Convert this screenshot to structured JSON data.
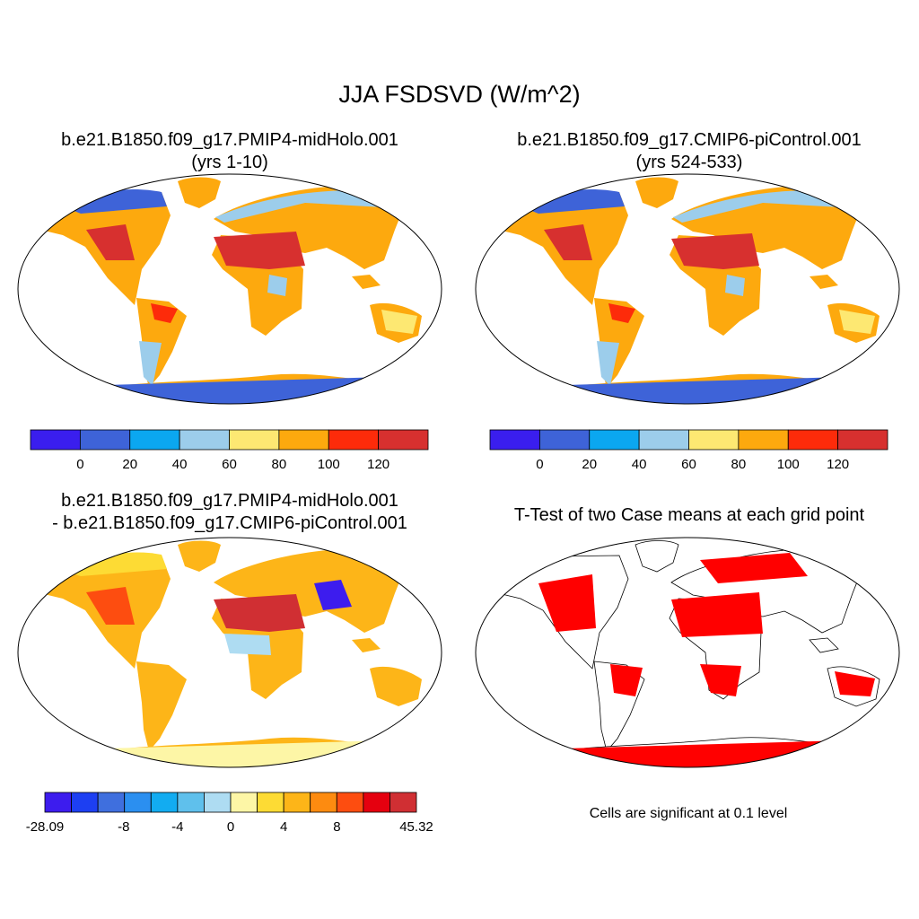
{
  "title": "JJA FSDSVD (W/m^2)",
  "colors": {
    "ocean": "#ffffff",
    "land_blank": "#ffffff",
    "outline": "#000000",
    "significance": "#ff0000",
    "antarctica_base": "#3f63d8",
    "antarctica_diff": "#fff29a"
  },
  "chart_data": [
    {
      "type": "heatmap",
      "id": "panel-1",
      "title_line1": "b.e21.B1850.f09_g17.PMIP4-midHolo.001",
      "title_line2": "(yrs 1-10)",
      "colorbar": {
        "colors": [
          "#3a1eee",
          "#3e63d8",
          "#0ba7f0",
          "#9ccdeb",
          "#fde872",
          "#fda90e",
          "#fd2b0a",
          "#d7302f"
        ],
        "labels": [
          "0",
          "20",
          "40",
          "60",
          "80",
          "100",
          "120"
        ]
      }
    },
    {
      "type": "heatmap",
      "id": "panel-2",
      "title_line1": "b.e21.B1850.f09_g17.CMIP6-piControl.001",
      "title_line2": "(yrs 524-533)",
      "colorbar": {
        "colors": [
          "#3a1eee",
          "#3e63d8",
          "#0ba7f0",
          "#9ccdeb",
          "#fde872",
          "#fda90e",
          "#fd2b0a",
          "#d7302f"
        ],
        "labels": [
          "0",
          "20",
          "40",
          "60",
          "80",
          "100",
          "120"
        ]
      }
    },
    {
      "type": "heatmap",
      "id": "panel-3",
      "title_line1": "b.e21.B1850.f09_g17.PMIP4-midHolo.001",
      "title_line2": "- b.e21.B1850.f09_g17.CMIP6-piControl.001",
      "colorbar": {
        "colors": [
          "#3d1cee",
          "#1d3ff2",
          "#3f6fde",
          "#2b8ff0",
          "#12acf1",
          "#5fc0ec",
          "#aedcf2",
          "#fdf6a6",
          "#fddb34",
          "#fdb518",
          "#fd8b10",
          "#fd4d10",
          "#e5000f",
          "#d02f33"
        ],
        "labels": [
          "-28.09",
          "-8",
          "-4",
          "0",
          "4",
          "8",
          "45.32"
        ]
      }
    },
    {
      "type": "heatmap",
      "id": "panel-4",
      "title_line1": "T-Test of two Case means at each grid point",
      "note": "Cells are significant at 0.1 level"
    }
  ]
}
